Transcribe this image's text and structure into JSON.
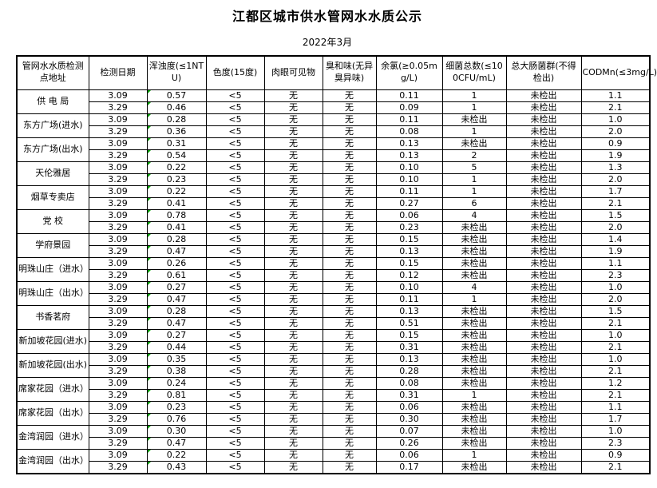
{
  "page": {
    "title": "江都区城市供水管网水水质公示",
    "subtitle": "2022年3月"
  },
  "colors": {
    "background": "#ffffff",
    "border": "#000000",
    "text": "#000000",
    "error_indicator_green": "#00a000"
  },
  "icons": {
    "error_indicator": "green-corner-triangle (spreadsheet cell flag, top-left of each turbidity cell)"
  },
  "table": {
    "columns": [
      "管网水水质检测点地址",
      "检测日期",
      "浑浊度(≤1NTU)",
      "色度(15度)",
      "肉眼可见物",
      "臭和味(无异臭异味)",
      "余氯(≥0.05mg/L)",
      "细菌总数(≤100CFU/mL)",
      "总大肠菌群(不得检出)",
      "CODMn(≤3mg/L)"
    ],
    "locations": [
      {
        "name": "供 电 局",
        "samples": [
          {
            "date": "3.09",
            "turbidity": "0.57",
            "color": "<5",
            "visible": "无",
            "odor": "无",
            "chlorine": "0.11",
            "bacteria": "1",
            "coliform": "未检出",
            "codmn": "1.1"
          },
          {
            "date": "3.29",
            "turbidity": "0.46",
            "color": "<5",
            "visible": "无",
            "odor": "无",
            "chlorine": "0.09",
            "bacteria": "1",
            "coliform": "未检出",
            "codmn": "2.1"
          }
        ]
      },
      {
        "name": "东方广场(进水)",
        "samples": [
          {
            "date": "3.09",
            "turbidity": "0.28",
            "color": "<5",
            "visible": "无",
            "odor": "无",
            "chlorine": "0.11",
            "bacteria": "未检出",
            "coliform": "未检出",
            "codmn": "1.0"
          },
          {
            "date": "3.29",
            "turbidity": "0.36",
            "color": "<5",
            "visible": "无",
            "odor": "无",
            "chlorine": "0.08",
            "bacteria": "1",
            "coliform": "未检出",
            "codmn": "2.0"
          }
        ]
      },
      {
        "name": "东方广场(出水)",
        "samples": [
          {
            "date": "3.09",
            "turbidity": "0.31",
            "color": "<5",
            "visible": "无",
            "odor": "无",
            "chlorine": "0.13",
            "bacteria": "未检出",
            "coliform": "未检出",
            "codmn": "0.9"
          },
          {
            "date": "3.29",
            "turbidity": "0.54",
            "color": "<5",
            "visible": "无",
            "odor": "无",
            "chlorine": "0.13",
            "bacteria": "2",
            "coliform": "未检出",
            "codmn": "1.9"
          }
        ]
      },
      {
        "name": "天伦雅居",
        "samples": [
          {
            "date": "3.09",
            "turbidity": "0.22",
            "color": "<5",
            "visible": "无",
            "odor": "无",
            "chlorine": "0.10",
            "bacteria": "5",
            "coliform": "未检出",
            "codmn": "1.3"
          },
          {
            "date": "3.29",
            "turbidity": "0.23",
            "color": "<5",
            "visible": "无",
            "odor": "无",
            "chlorine": "0.10",
            "bacteria": "1",
            "coliform": "未检出",
            "codmn": "2.0"
          }
        ]
      },
      {
        "name": "烟草专卖店",
        "samples": [
          {
            "date": "3.09",
            "turbidity": "0.22",
            "color": "<5",
            "visible": "无",
            "odor": "无",
            "chlorine": "0.11",
            "bacteria": "1",
            "coliform": "未检出",
            "codmn": "1.7"
          },
          {
            "date": "3.29",
            "turbidity": "0.41",
            "color": "<5",
            "visible": "无",
            "odor": "无",
            "chlorine": "0.27",
            "bacteria": "6",
            "coliform": "未检出",
            "codmn": "2.1"
          }
        ]
      },
      {
        "name": "党  校",
        "samples": [
          {
            "date": "3.09",
            "turbidity": "0.78",
            "color": "<5",
            "visible": "无",
            "odor": "无",
            "chlorine": "0.06",
            "bacteria": "4",
            "coliform": "未检出",
            "codmn": "1.5"
          },
          {
            "date": "3.29",
            "turbidity": "0.41",
            "color": "<5",
            "visible": "无",
            "odor": "无",
            "chlorine": "0.23",
            "bacteria": "未检出",
            "coliform": "未检出",
            "codmn": "2.0"
          }
        ]
      },
      {
        "name": "学府景园",
        "samples": [
          {
            "date": "3.09",
            "turbidity": "0.28",
            "color": "<5",
            "visible": "无",
            "odor": "无",
            "chlorine": "0.15",
            "bacteria": "未检出",
            "coliform": "未检出",
            "codmn": "1.4"
          },
          {
            "date": "3.29",
            "turbidity": "0.47",
            "color": "<5",
            "visible": "无",
            "odor": "无",
            "chlorine": "0.13",
            "bacteria": "未检出",
            "coliform": "未检出",
            "codmn": "1.9"
          }
        ]
      },
      {
        "name": "明珠山庄（进水）",
        "samples": [
          {
            "date": "3.09",
            "turbidity": "0.26",
            "color": "<5",
            "visible": "无",
            "odor": "无",
            "chlorine": "0.15",
            "bacteria": "未检出",
            "coliform": "未检出",
            "codmn": "1.1"
          },
          {
            "date": "3.29",
            "turbidity": "0.61",
            "color": "<5",
            "visible": "无",
            "odor": "无",
            "chlorine": "0.12",
            "bacteria": "未检出",
            "coliform": "未检出",
            "codmn": "2.3"
          }
        ]
      },
      {
        "name": "明珠山庄（出水）",
        "samples": [
          {
            "date": "3.09",
            "turbidity": "0.27",
            "color": "<5",
            "visible": "无",
            "odor": "无",
            "chlorine": "0.10",
            "bacteria": "4",
            "coliform": "未检出",
            "codmn": "1.0"
          },
          {
            "date": "3.29",
            "turbidity": "0.47",
            "color": "<5",
            "visible": "无",
            "odor": "无",
            "chlorine": "0.11",
            "bacteria": "1",
            "coliform": "未检出",
            "codmn": "2.0"
          }
        ]
      },
      {
        "name": "书香茗府",
        "samples": [
          {
            "date": "3.09",
            "turbidity": "0.28",
            "color": "<5",
            "visible": "无",
            "odor": "无",
            "chlorine": "0.13",
            "bacteria": "未检出",
            "coliform": "未检出",
            "codmn": "1.5"
          },
          {
            "date": "3.29",
            "turbidity": "0.47",
            "color": "<5",
            "visible": "无",
            "odor": "无",
            "chlorine": "0.51",
            "bacteria": "未检出",
            "coliform": "未检出",
            "codmn": "2.1"
          }
        ]
      },
      {
        "name": "新加坡花园(进水)",
        "samples": [
          {
            "date": "3.09",
            "turbidity": "0.27",
            "color": "<5",
            "visible": "无",
            "odor": "无",
            "chlorine": "0.15",
            "bacteria": "未检出",
            "coliform": "未检出",
            "codmn": "1.0"
          },
          {
            "date": "3.29",
            "turbidity": "0.44",
            "color": "<5",
            "visible": "无",
            "odor": "无",
            "chlorine": "0.31",
            "bacteria": "未检出",
            "coliform": "未检出",
            "codmn": "2.1"
          }
        ]
      },
      {
        "name": "新加坡花园(出水)",
        "samples": [
          {
            "date": "3.09",
            "turbidity": "0.35",
            "color": "<5",
            "visible": "无",
            "odor": "无",
            "chlorine": "0.13",
            "bacteria": "未检出",
            "coliform": "未检出",
            "codmn": "1.0"
          },
          {
            "date": "3.29",
            "turbidity": "0.38",
            "color": "<5",
            "visible": "无",
            "odor": "无",
            "chlorine": "0.28",
            "bacteria": "未检出",
            "coliform": "未检出",
            "codmn": "2.1"
          }
        ]
      },
      {
        "name": "席家花园（进水）",
        "samples": [
          {
            "date": "3.09",
            "turbidity": "0.24",
            "color": "<5",
            "visible": "无",
            "odor": "无",
            "chlorine": "0.08",
            "bacteria": "未检出",
            "coliform": "未检出",
            "codmn": "1.2"
          },
          {
            "date": "3.29",
            "turbidity": "0.81",
            "color": "<5",
            "visible": "无",
            "odor": "无",
            "chlorine": "0.31",
            "bacteria": "1",
            "coliform": "未检出",
            "codmn": "2.1"
          }
        ]
      },
      {
        "name": "席家花园（出水）",
        "samples": [
          {
            "date": "3.09",
            "turbidity": "0.23",
            "color": "<5",
            "visible": "无",
            "odor": "无",
            "chlorine": "0.06",
            "bacteria": "未检出",
            "coliform": "未检出",
            "codmn": "1.1"
          },
          {
            "date": "3.29",
            "turbidity": "0.76",
            "color": "<5",
            "visible": "无",
            "odor": "无",
            "chlorine": "0.30",
            "bacteria": "未检出",
            "coliform": "未检出",
            "codmn": "1.7"
          }
        ]
      },
      {
        "name": "金湾润园（进水）",
        "samples": [
          {
            "date": "3.09",
            "turbidity": "0.30",
            "color": "<5",
            "visible": "无",
            "odor": "无",
            "chlorine": "0.07",
            "bacteria": "未检出",
            "coliform": "未检出",
            "codmn": "1.0"
          },
          {
            "date": "3.29",
            "turbidity": "0.47",
            "color": "<5",
            "visible": "无",
            "odor": "无",
            "chlorine": "0.26",
            "bacteria": "未检出",
            "coliform": "未检出",
            "codmn": "2.3"
          }
        ]
      },
      {
        "name": "金湾润园（出水）",
        "samples": [
          {
            "date": "3.09",
            "turbidity": "0.22",
            "color": "<5",
            "visible": "无",
            "odor": "无",
            "chlorine": "0.06",
            "bacteria": "1",
            "coliform": "未检出",
            "codmn": "0.9"
          },
          {
            "date": "3.29",
            "turbidity": "0.43",
            "color": "<5",
            "visible": "无",
            "odor": "无",
            "chlorine": "0.17",
            "bacteria": "未检出",
            "coliform": "未检出",
            "codmn": "2.1"
          }
        ]
      }
    ]
  }
}
